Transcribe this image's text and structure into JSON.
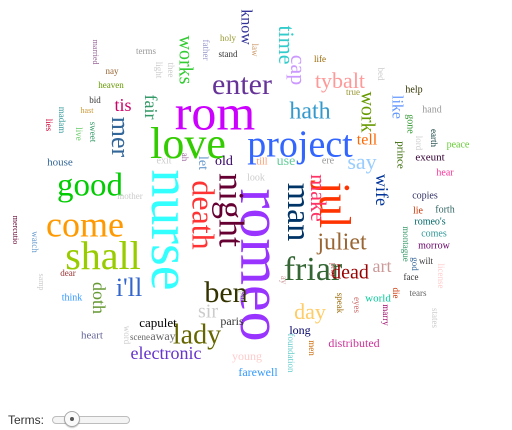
{
  "controls": {
    "terms_label": "Terms:",
    "terms_slider_level": 0.2
  },
  "words": [
    {
      "text": "romeo",
      "color": "#9933ff"
    },
    {
      "text": "nurse",
      "color": "#33ffff"
    },
    {
      "text": "rom",
      "color": "#cc00ff"
    },
    {
      "text": "love",
      "color": "#33cc00"
    },
    {
      "text": "project",
      "color": "#3366ff"
    },
    {
      "text": "jul",
      "color": "#ff3300"
    },
    {
      "text": "come",
      "color": "#ff9900"
    },
    {
      "text": "shall",
      "color": "#99cc00"
    },
    {
      "text": "good",
      "color": "#00cc00"
    },
    {
      "text": "night",
      "color": "#660033"
    },
    {
      "text": "death",
      "color": "#ff3333"
    },
    {
      "text": "man",
      "color": "#003366"
    },
    {
      "text": "friar",
      "color": "#336633"
    },
    {
      "text": "enter",
      "color": "#663399"
    },
    {
      "text": "ben",
      "color": "#333300"
    },
    {
      "text": "lady",
      "color": "#666600"
    },
    {
      "text": "i'll",
      "color": "#3366cc"
    },
    {
      "text": "juliet",
      "color": "#996633"
    },
    {
      "text": "hath",
      "color": "#3399cc"
    },
    {
      "text": "make",
      "color": "#ff3366"
    },
    {
      "text": "mer",
      "color": "#336699"
    },
    {
      "text": "electronic",
      "color": "#6633cc"
    },
    {
      "text": "work",
      "color": "#669900"
    },
    {
      "text": "dead",
      "color": "#990000"
    },
    {
      "text": "tybalt",
      "color": "#ff9999"
    },
    {
      "text": "say",
      "color": "#99ccff"
    },
    {
      "text": "time",
      "color": "#33cccc"
    },
    {
      "text": "cap",
      "color": "#cc99ff"
    },
    {
      "text": "works",
      "color": "#33cc33"
    },
    {
      "text": "day",
      "color": "#ffcc66"
    },
    {
      "text": "sir",
      "color": "#cccccc"
    },
    {
      "text": "wife",
      "color": "#003399"
    },
    {
      "text": "fair",
      "color": "#339966"
    },
    {
      "text": "tis",
      "color": "#cc0066"
    },
    {
      "text": "doth",
      "color": "#669933"
    },
    {
      "text": "art",
      "color": "#cc9999"
    },
    {
      "text": "tell",
      "color": "#ff6600"
    },
    {
      "text": "like",
      "color": "#6699ff"
    },
    {
      "text": "know",
      "color": "#333399"
    },
    {
      "text": "paris",
      "color": "#333333"
    },
    {
      "text": "old",
      "color": "#330066"
    },
    {
      "text": "let",
      "color": "#6699cc"
    },
    {
      "text": "use",
      "color": "#66cc99"
    },
    {
      "text": "capulet",
      "color": "#000000"
    },
    {
      "text": "away",
      "color": "#666666"
    },
    {
      "text": "long",
      "color": "#000066"
    },
    {
      "text": "distributed",
      "color": "#cc3399"
    },
    {
      "text": "farewell",
      "color": "#3399ff"
    },
    {
      "text": "young",
      "color": "#ffcccc"
    },
    {
      "text": "heart",
      "color": "#666699"
    },
    {
      "text": "house",
      "color": "#336699"
    },
    {
      "text": "exit",
      "color": "#cccccc"
    },
    {
      "text": "ah",
      "color": "#996699"
    },
    {
      "text": "look",
      "color": "#cccccc"
    },
    {
      "text": "till",
      "color": "#ff9966"
    },
    {
      "text": "ere",
      "color": "#999999"
    },
    {
      "text": "prince",
      "color": "#336600"
    },
    {
      "text": "exeunt",
      "color": "#330033"
    },
    {
      "text": "copies",
      "color": "#333366"
    },
    {
      "text": "forth",
      "color": "#336666"
    },
    {
      "text": "romeo's",
      "color": "#006666"
    },
    {
      "text": "comes",
      "color": "#339999"
    },
    {
      "text": "morrow",
      "color": "#660066"
    },
    {
      "text": "lie",
      "color": "#cc3300"
    },
    {
      "text": "hear",
      "color": "#ff3399"
    },
    {
      "text": "peace",
      "color": "#66cc33"
    },
    {
      "text": "earth",
      "color": "#003333"
    },
    {
      "text": "lord",
      "color": "#cccccc"
    },
    {
      "text": "gone",
      "color": "#339933"
    },
    {
      "text": "hand",
      "color": "#999999"
    },
    {
      "text": "help",
      "color": "#333300"
    },
    {
      "text": "bed",
      "color": "#cccccc"
    },
    {
      "text": "life",
      "color": "#996600"
    },
    {
      "text": "true",
      "color": "#999933"
    },
    {
      "text": "mother",
      "color": "#cccccc"
    },
    {
      "text": "world",
      "color": "#00cc99"
    },
    {
      "text": "montague",
      "color": "#339966"
    },
    {
      "text": "god",
      "color": "#336699"
    },
    {
      "text": "wilt",
      "color": "#333333"
    },
    {
      "text": "face",
      "color": "#333333"
    },
    {
      "text": "tears",
      "color": "#666666"
    },
    {
      "text": "license",
      "color": "#ffcccc"
    },
    {
      "text": "states",
      "color": "#cccccc"
    },
    {
      "text": "marry",
      "color": "#990066"
    },
    {
      "text": "die",
      "color": "#cc3300"
    },
    {
      "text": "eyes",
      "color": "#cc6666"
    },
    {
      "text": "speak",
      "color": "#996600"
    },
    {
      "text": "pray",
      "color": "#cc6666"
    },
    {
      "text": "ay",
      "color": "#cc9999"
    },
    {
      "text": "men",
      "color": "#cc6600"
    },
    {
      "text": "foundation",
      "color": "#66cccc"
    },
    {
      "text": "par",
      "color": "#cccccc"
    },
    {
      "text": "scene",
      "color": "#666666"
    },
    {
      "text": "word",
      "color": "#cccccc"
    },
    {
      "text": "mercutio",
      "color": "#660033"
    },
    {
      "text": "watch",
      "color": "#6699cc"
    },
    {
      "text": "samp",
      "color": "#cccccc"
    },
    {
      "text": "dear",
      "color": "#993333"
    },
    {
      "text": "think",
      "color": "#3399ff"
    },
    {
      "text": "lies",
      "color": "#cc0033"
    },
    {
      "text": "madam",
      "color": "#339999"
    },
    {
      "text": "live",
      "color": "#66cc66"
    },
    {
      "text": "sweet",
      "color": "#339966"
    },
    {
      "text": "hast",
      "color": "#cc9933"
    },
    {
      "text": "bid",
      "color": "#333333"
    },
    {
      "text": "heaven",
      "color": "#669900"
    },
    {
      "text": "nay",
      "color": "#996633"
    },
    {
      "text": "married",
      "color": "#996699"
    },
    {
      "text": "terms",
      "color": "#999999"
    },
    {
      "text": "light",
      "color": "#cccccc"
    },
    {
      "text": "thee",
      "color": "#cccccc"
    },
    {
      "text": "father",
      "color": "#9999cc"
    },
    {
      "text": "holy",
      "color": "#999933"
    },
    {
      "text": "stand",
      "color": "#333333"
    },
    {
      "text": "law",
      "color": "#cc9966"
    }
  ]
}
